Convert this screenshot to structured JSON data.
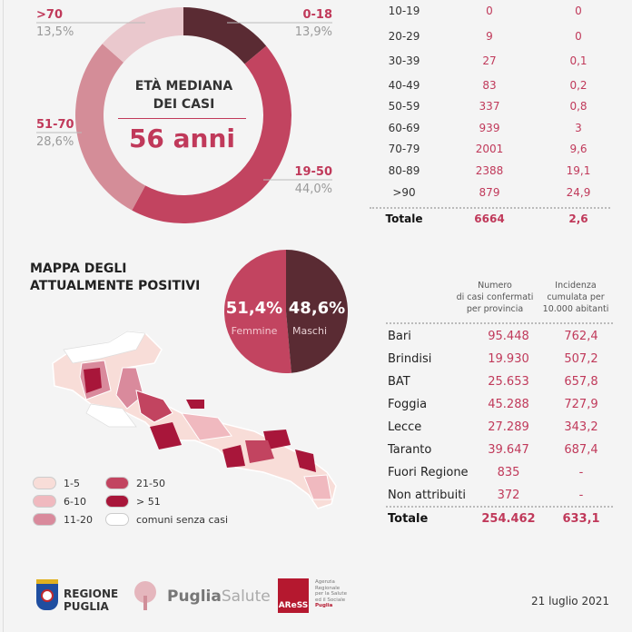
{
  "age_donut": {
    "title": "ETÀ MEDIANA DEI CASI",
    "title_line1": "ETÀ MEDIANA",
    "title_line2": "DEI CASI",
    "median": "56 anni",
    "segments": [
      {
        "label": "0-18",
        "pct": "13,9%",
        "value": 13.9,
        "color": "#5a2b33"
      },
      {
        "label": "19-50",
        "pct": "44,0%",
        "value": 44.0,
        "color": "#c24460"
      },
      {
        "label": "51-70",
        "pct": "28,6%",
        "value": 28.6,
        "color": "#d48d98"
      },
      {
        "label": ">70",
        "pct": "13,5%",
        "value": 13.5,
        "color": "#eac8cd"
      }
    ]
  },
  "deaths_table": {
    "rows": [
      {
        "age": "10-19",
        "count": "0",
        "inc": "0"
      },
      {
        "age": "20-29",
        "count": "9",
        "inc": "0"
      },
      {
        "age": "30-39",
        "count": "27",
        "inc": "0,1"
      },
      {
        "age": "40-49",
        "count": "83",
        "inc": "0,2"
      },
      {
        "age": "50-59",
        "count": "337",
        "inc": "0,8"
      },
      {
        "age": "60-69",
        "count": "939",
        "inc": "3"
      },
      {
        "age": "70-79",
        "count": "2001",
        "inc": "9,6"
      },
      {
        "age": "80-89",
        "count": "2388",
        "inc": "19,1"
      },
      {
        "age": ">90",
        "count": "879",
        "inc": "24,9"
      }
    ],
    "total": {
      "label": "Totale",
      "count": "6664",
      "inc": "2,6"
    }
  },
  "map": {
    "title_line1": "MAPPA DEGLI",
    "title_line2": "ATTUALMENTE POSITIVI",
    "legend": [
      {
        "label": "1-5",
        "color": "#f8ddd8"
      },
      {
        "label": "6-10",
        "color": "#f0b9bf"
      },
      {
        "label": "11-20",
        "color": "#d98a9c"
      },
      {
        "label": "21-50",
        "color": "#c24460"
      },
      {
        "label": "> 51",
        "color": "#a8163a"
      },
      {
        "label": "comuni senza casi",
        "color": "#ffffff"
      }
    ]
  },
  "gender": {
    "female": {
      "pct": "51,4%",
      "label": "Femmine",
      "value": 51.4,
      "color": "#c24460"
    },
    "male": {
      "pct": "48,6%",
      "label": "Maschi",
      "value": 48.6,
      "color": "#5a2b33"
    }
  },
  "province_table": {
    "header_cases": [
      "Numero",
      "di casi confermati",
      "per provincia"
    ],
    "header_inc": [
      "Incidenza",
      "cumulata per",
      "10.000 abitanti"
    ],
    "rows": [
      {
        "name": "Bari",
        "cases": "95.448",
        "inc": "762,4"
      },
      {
        "name": "Brindisi",
        "cases": "19.930",
        "inc": "507,2"
      },
      {
        "name": "BAT",
        "cases": "25.653",
        "inc": "657,8"
      },
      {
        "name": "Foggia",
        "cases": "45.288",
        "inc": "727,9"
      },
      {
        "name": "Lecce",
        "cases": "27.289",
        "inc": "343,2"
      },
      {
        "name": "Taranto",
        "cases": "39.647",
        "inc": "687,4"
      },
      {
        "name": "Fuori Regione",
        "cases": "835",
        "inc": "-"
      },
      {
        "name": "Non attribuiti",
        "cases": "372",
        "inc": "-"
      }
    ],
    "total": {
      "name": "Totale",
      "cases": "254.462",
      "inc": "633,1"
    }
  },
  "footer": {
    "regione_line1": "REGIONE",
    "regione_line2": "PUGLIA",
    "puglia_salute_bold": "Puglia",
    "puglia_salute_light": "Salute",
    "aress": "AReSS",
    "aress_desc": [
      "Agenzia",
      "Regionale",
      "per la Salute",
      "ed il Sociale",
      "Puglia"
    ],
    "date": "21 luglio 2021"
  },
  "chart_data": [
    {
      "type": "pie",
      "variant": "donut",
      "title": "ETÀ MEDIANA DEI CASI",
      "annotation": "56 anni",
      "categories": [
        "0-18",
        "19-50",
        "51-70",
        ">70"
      ],
      "values": [
        13.9,
        44.0,
        28.6,
        13.5
      ]
    },
    {
      "type": "pie",
      "categories": [
        "Femmine",
        "Maschi"
      ],
      "values": [
        51.4,
        48.6
      ]
    },
    {
      "type": "table",
      "columns": [
        "",
        "",
        ""
      ],
      "rows": [
        [
          "10-19",
          "0",
          "0"
        ],
        [
          "20-29",
          "9",
          "0"
        ],
        [
          "30-39",
          "27",
          "0,1"
        ],
        [
          "40-49",
          "83",
          "0,2"
        ],
        [
          "50-59",
          "337",
          "0,8"
        ],
        [
          "60-69",
          "939",
          "3"
        ],
        [
          "70-79",
          "2001",
          "9,6"
        ],
        [
          "80-89",
          "2388",
          "19,1"
        ],
        [
          ">90",
          "879",
          "24,9"
        ],
        [
          "Totale",
          "6664",
          "2,6"
        ]
      ]
    },
    {
      "type": "table",
      "columns": [
        "",
        "Numero di casi confermati per provincia",
        "Incidenza cumulata per 10.000 abitanti"
      ],
      "rows": [
        [
          "Bari",
          "95.448",
          "762,4"
        ],
        [
          "Brindisi",
          "19.930",
          "507,2"
        ],
        [
          "BAT",
          "25.653",
          "657,8"
        ],
        [
          "Foggia",
          "45.288",
          "727,9"
        ],
        [
          "Lecce",
          "27.289",
          "343,2"
        ],
        [
          "Taranto",
          "39.647",
          "687,4"
        ],
        [
          "Fuori Regione",
          "835",
          "-"
        ],
        [
          "Non attribuiti",
          "372",
          "-"
        ],
        [
          "Totale",
          "254.462",
          "633,1"
        ]
      ]
    }
  ]
}
